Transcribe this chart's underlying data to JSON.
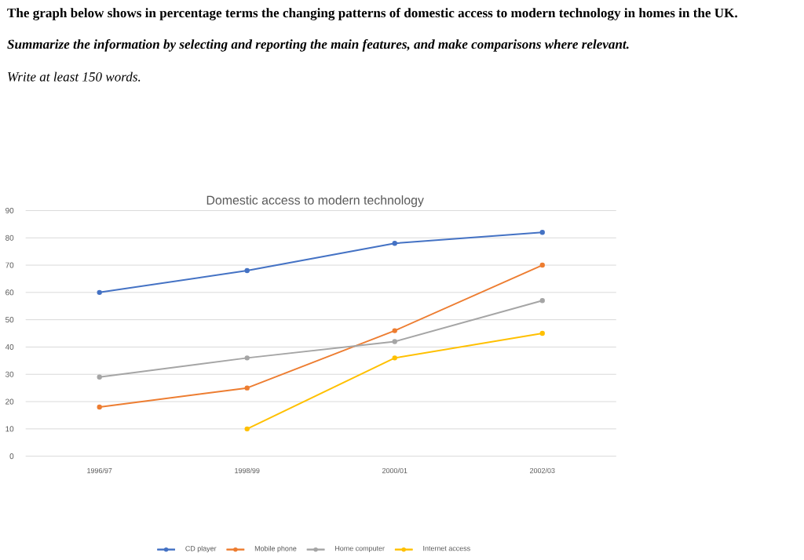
{
  "chart_data": {
    "type": "line",
    "title": "Domestic access to modern technology",
    "annotations": [
      "The graph below shows in percentage terms the changing patterns of domestic access to modern technology in homes in the UK.",
      "Summarize the information by selecting and reporting the main features, and make comparisons where relevant.",
      "Write at least 150 words."
    ],
    "categories": [
      "1996/97",
      "1998/99",
      "2000/01",
      "2002/03"
    ],
    "series": [
      {
        "name": "CD player",
        "color": "#4472c4",
        "values": [
          60,
          68,
          78,
          82
        ]
      },
      {
        "name": "Mobile phone",
        "color": "#ed7d31",
        "values": [
          18,
          25,
          46,
          70
        ]
      },
      {
        "name": "Home computer",
        "color": "#a5a5a5",
        "values": [
          29,
          36,
          42,
          57
        ]
      },
      {
        "name": "Internet access",
        "color": "#ffc000",
        "values": [
          null,
          10,
          36,
          45
        ]
      }
    ],
    "ylim": [
      0,
      90
    ],
    "yticks": [
      0,
      10,
      20,
      30,
      40,
      50,
      60,
      70,
      80,
      90
    ],
    "grid": "y",
    "legend": "bottom",
    "marker": "circle",
    "line_style": "solid"
  }
}
